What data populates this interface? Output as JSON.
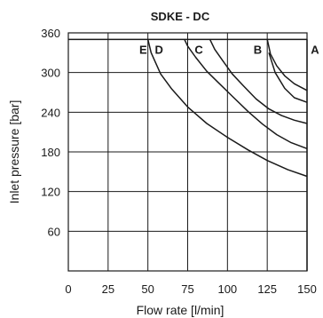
{
  "chart_data": {
    "type": "line",
    "title": "SDKE - DC",
    "xlabel": "Flow rate [l/min]",
    "ylabel": "Inlet pressure [bar]",
    "xlim": [
      0,
      150
    ],
    "ylim": [
      0,
      360
    ],
    "xticks": [
      0,
      25,
      50,
      75,
      100,
      125,
      150
    ],
    "yticks": [
      60,
      120,
      180,
      240,
      300,
      360
    ],
    "grid": true,
    "max_pressure_line": 350,
    "series": [
      {
        "name": "A",
        "points": [
          [
            150,
            350
          ],
          [
            150,
            0
          ]
        ]
      },
      {
        "name": "B",
        "points": [
          [
            125,
            350
          ],
          [
            127,
            328
          ],
          [
            131,
            310
          ],
          [
            136,
            295
          ],
          [
            142,
            283
          ],
          [
            150,
            273
          ]
        ]
      },
      {
        "name": "C",
        "points": [
          [
            89,
            350
          ],
          [
            92,
            335
          ],
          [
            97,
            318
          ],
          [
            103,
            298
          ],
          [
            110,
            280
          ],
          [
            118,
            260
          ],
          [
            126,
            245
          ],
          [
            134,
            235
          ],
          [
            142,
            228
          ],
          [
            150,
            223
          ]
        ]
      },
      {
        "name": "D",
        "points": [
          [
            73,
            350
          ],
          [
            75,
            340
          ],
          [
            80,
            323
          ],
          [
            87,
            302
          ],
          [
            95,
            283
          ],
          [
            104,
            262
          ],
          [
            113,
            241
          ],
          [
            122,
            222
          ],
          [
            131,
            206
          ],
          [
            140,
            194
          ],
          [
            150,
            185
          ]
        ]
      },
      {
        "name": "E",
        "points": [
          [
            50,
            350
          ],
          [
            52,
            330
          ],
          [
            58,
            298
          ],
          [
            65,
            275
          ],
          [
            75,
            248
          ],
          [
            87,
            223
          ],
          [
            100,
            202
          ],
          [
            113,
            183
          ],
          [
            125,
            167
          ],
          [
            138,
            153
          ],
          [
            150,
            143
          ]
        ]
      }
    ],
    "extra_series": [
      {
        "name": "",
        "points": [
          [
            0,
            350
          ],
          [
            150,
            350
          ]
        ]
      },
      {
        "name": "",
        "points": [
          [
            126,
            330
          ],
          [
            130,
            300
          ],
          [
            136,
            276
          ],
          [
            142,
            262
          ],
          [
            150,
            255
          ]
        ]
      }
    ],
    "curve_labels": [
      {
        "text": "E",
        "x": 47,
        "y": 335
      },
      {
        "text": "D",
        "x": 57,
        "y": 335
      },
      {
        "text": "C",
        "x": 82,
        "y": 335
      },
      {
        "text": "B",
        "x": 119,
        "y": 335
      },
      {
        "text": "A",
        "x": 155,
        "y": 335
      }
    ]
  }
}
